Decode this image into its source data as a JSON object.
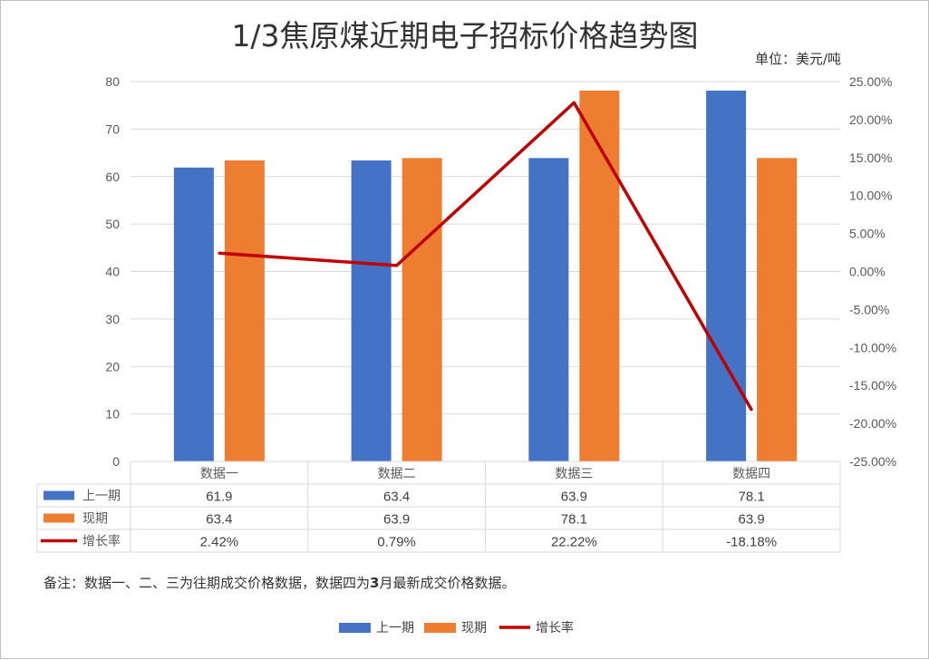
{
  "unit_label": "单位：美元/吨",
  "note_prefix": "备注：数据一、二、三为往期成交价格数据，数据四为",
  "note_bold": "3",
  "note_suffix": "月最新成交价格数据。",
  "chart_data": {
    "type": "bar",
    "title": "1/3焦原煤近期电子招标价格趋势图",
    "categories": [
      "数据一",
      "数据二",
      "数据三",
      "数据四"
    ],
    "series": [
      {
        "name": "上一期",
        "kind": "bar",
        "axis": "left",
        "color": "#4472C4",
        "values": [
          61.9,
          63.4,
          63.9,
          78.1
        ],
        "labels": [
          "61.9",
          "63.4",
          "63.9",
          "78.1"
        ]
      },
      {
        "name": "现期",
        "kind": "bar",
        "axis": "left",
        "color": "#ED7D31",
        "values": [
          63.4,
          63.9,
          78.1,
          63.9
        ],
        "labels": [
          "63.4",
          "63.9",
          "78.1",
          "63.9"
        ]
      },
      {
        "name": "增长率",
        "kind": "line",
        "axis": "right",
        "color": "#C00000",
        "values": [
          2.42,
          0.79,
          22.22,
          -18.18
        ],
        "labels": [
          "2.42%",
          "0.79%",
          "22.22%",
          "-18.18%"
        ]
      }
    ],
    "y_left": {
      "min": 0,
      "max": 80,
      "step": 10,
      "ticks": [
        "0",
        "10",
        "20",
        "30",
        "40",
        "50",
        "60",
        "70",
        "80"
      ]
    },
    "y_right": {
      "min": -25,
      "max": 25,
      "step": 5,
      "ticks": [
        "-25.00%",
        "-20.00%",
        "-15.00%",
        "-10.00%",
        "-5.00%",
        "0.00%",
        "5.00%",
        "10.00%",
        "15.00%",
        "20.00%",
        "25.00%"
      ]
    },
    "grid": true,
    "legend": "bottom",
    "data_table": true
  }
}
